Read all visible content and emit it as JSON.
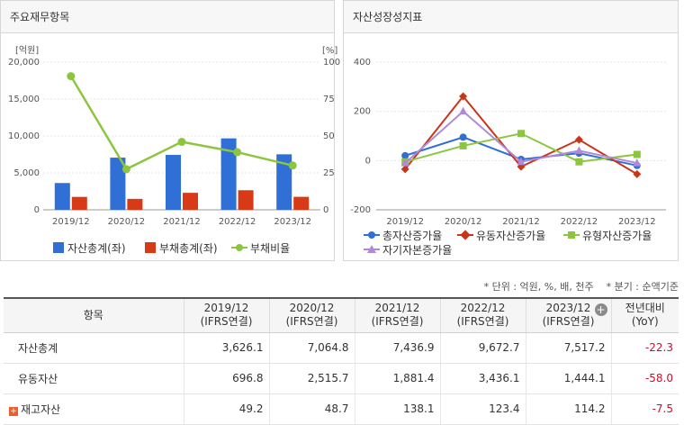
{
  "left_panel": {
    "title": "주요재무항목",
    "y_unit_left": "[억원]",
    "y_unit_right": "[%]",
    "legend": [
      {
        "label": "자산총계(좌)",
        "color": "#2f6fd6"
      },
      {
        "label": "부채총계(좌)",
        "color": "#d83a18"
      },
      {
        "label": "부채비율",
        "color": "#8cc63f"
      }
    ]
  },
  "right_panel": {
    "title": "자산성장성지표",
    "legend": [
      {
        "label": "총자산증가율",
        "color": "#2f6fd6"
      },
      {
        "label": "유동자산증가율",
        "color": "#c8361a"
      },
      {
        "label": "유형자산증가율",
        "color": "#8cc63f"
      },
      {
        "label": "자기자본증가율",
        "color": "#b08ad8"
      }
    ]
  },
  "chart_data": [
    {
      "type": "bar",
      "title": "주요재무항목",
      "categories": [
        "2019/12",
        "2020/12",
        "2021/12",
        "2022/12",
        "2023/12"
      ],
      "ylim": [
        0,
        20000
      ],
      "yticks": [
        "0",
        "5,000",
        "10,000",
        "15,000",
        "20,000"
      ],
      "y2lim": [
        0,
        100
      ],
      "y2ticks": [
        "0",
        "25",
        "50",
        "75",
        "100"
      ],
      "series": [
        {
          "name": "자산총계(좌)",
          "type": "bar",
          "axis": "left",
          "color": "#2f6fd6",
          "values": [
            3626.1,
            7064.8,
            7436.9,
            9672.7,
            7517.2
          ]
        },
        {
          "name": "부채총계(좌)",
          "type": "bar",
          "axis": "left",
          "color": "#d83a18",
          "values": [
            1750,
            1480,
            2300,
            2650,
            1760
          ]
        },
        {
          "name": "부채비율",
          "type": "line",
          "axis": "right",
          "color": "#8cc63f",
          "values": [
            90.5,
            27.5,
            46,
            39,
            30
          ]
        }
      ],
      "grid": true,
      "legend": "bottom"
    },
    {
      "type": "line",
      "title": "자산성장성지표",
      "categories": [
        "2019/12",
        "2020/12",
        "2021/12",
        "2022/12",
        "2023/12"
      ],
      "ylim": [
        -200,
        400
      ],
      "yticks": [
        "-200",
        "0",
        "200",
        "400"
      ],
      "series": [
        {
          "name": "총자산증가율",
          "color": "#2f6fd6",
          "marker": "circle",
          "values": [
            20,
            95,
            5,
            30,
            -20
          ]
        },
        {
          "name": "유동자산증가율",
          "color": "#c8361a",
          "marker": "diamond",
          "values": [
            -35,
            261,
            -25,
            85,
            -55
          ]
        },
        {
          "name": "유형자산증가율",
          "color": "#8cc63f",
          "marker": "square",
          "values": [
            -5,
            60,
            110,
            -5,
            25
          ]
        },
        {
          "name": "자기자본증가율",
          "color": "#b08ad8",
          "marker": "triangle",
          "values": [
            -10,
            200,
            -5,
            40,
            -10
          ]
        }
      ],
      "grid": true,
      "legend": "bottom"
    }
  ],
  "notes": {
    "unit": "* 단위 : 억원, %, 배, 천주",
    "period": "* 분기 : 순액기준"
  },
  "table": {
    "headers": [
      {
        "line1": "항목",
        "line2": ""
      },
      {
        "line1": "2019/12",
        "line2": "(IFRS연결)"
      },
      {
        "line1": "2020/12",
        "line2": "(IFRS연결)"
      },
      {
        "line1": "2021/12",
        "line2": "(IFRS연결)"
      },
      {
        "line1": "2022/12",
        "line2": "(IFRS연결)"
      },
      {
        "line1": "2023/12",
        "line2": "(IFRS연결)"
      },
      {
        "line1": "전년대비",
        "line2": "(YoY)"
      }
    ],
    "rows": [
      {
        "label": "자산총계",
        "expandable": false,
        "values": [
          "3,626.1",
          "7,064.8",
          "7,436.9",
          "9,672.7",
          "7,517.2"
        ],
        "yoy": "-22.3"
      },
      {
        "label": "유동자산",
        "expandable": false,
        "values": [
          "696.8",
          "2,515.7",
          "1,881.4",
          "3,436.1",
          "1,444.1"
        ],
        "yoy": "-58.0"
      },
      {
        "label": "재고자산",
        "expandable": true,
        "values": [
          "49.2",
          "48.7",
          "138.1",
          "123.4",
          "114.2"
        ],
        "yoy": "-7.5"
      }
    ]
  }
}
